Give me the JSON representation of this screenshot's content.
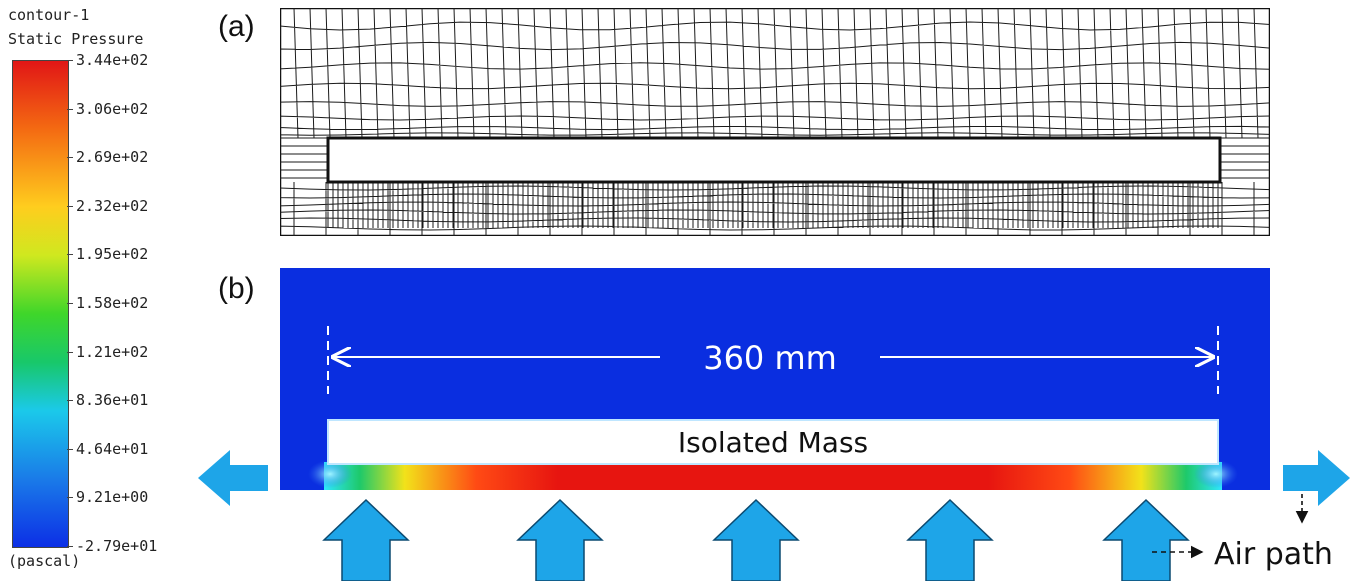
{
  "legend": {
    "title": "contour-1",
    "variable": "Static Pressure",
    "unit": "(pascal)",
    "ticks": [
      "3.44e+02",
      "3.06e+02",
      "2.69e+02",
      "2.32e+02",
      "1.95e+02",
      "1.58e+02",
      "1.21e+02",
      "8.36e+01",
      "4.64e+01",
      "9.21e+00",
      "-2.79e+01"
    ],
    "colors": [
      "#e11616",
      "#f46a12",
      "#ffcd1e",
      "#cfe81f",
      "#3fd62a",
      "#18c86a",
      "#1bc9ea",
      "#1a7be8",
      "#0c2fe6"
    ]
  },
  "panel_a": {
    "label": "(a)"
  },
  "panel_b": {
    "label": "(b)",
    "dimension_text": "360 mm",
    "mass_label": "Isolated Mass",
    "air_path_label": "Air path",
    "field_color": "#0a2ee0",
    "arrow_color": "#1ea5e8"
  }
}
